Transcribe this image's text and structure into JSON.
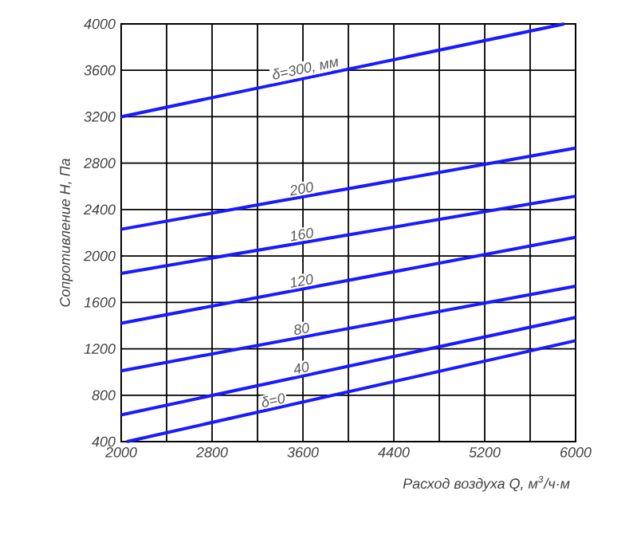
{
  "chart_data": {
    "type": "line",
    "xlabel": "Расход воздуха Q, м$^{3}$/ч·м",
    "ylabel": "Сопротивление Н, Па",
    "xlim": [
      2000,
      6000
    ],
    "ylim": [
      400,
      4000
    ],
    "xticks": [
      2000,
      {
        "value": 2400,
        "label": null
      },
      2800,
      {
        "value": 3200,
        "label": null
      },
      3600,
      {
        "value": 4000,
        "label": null
      },
      4400,
      {
        "value": 4800,
        "label": null
      },
      5200,
      {
        "value": 5600,
        "label": null
      },
      6000
    ],
    "yticks": [
      400,
      800,
      1200,
      1600,
      2000,
      2400,
      2800,
      3200,
      3600,
      4000
    ],
    "grid": true,
    "legend": false,
    "line_style": "solid",
    "marker": "none",
    "series": [
      {
        "name": "δ=300, мм",
        "color": "#1a1aff",
        "x": [
          2000,
          5900
        ],
        "values": [
          3200,
          4000
        ]
      },
      {
        "name": "200",
        "color": "#1a1aff",
        "x": [
          2000,
          6000
        ],
        "values": [
          2230,
          2930
        ]
      },
      {
        "name": "160",
        "color": "#1a1aff",
        "x": [
          2000,
          6000
        ],
        "values": [
          1850,
          2515
        ]
      },
      {
        "name": "120",
        "color": "#1a1aff",
        "x": [
          2000,
          6000
        ],
        "values": [
          1420,
          2160
        ]
      },
      {
        "name": "80",
        "color": "#1a1aff",
        "x": [
          2000,
          6000
        ],
        "values": [
          1010,
          1740
        ]
      },
      {
        "name": "40",
        "color": "#1a1aff",
        "x": [
          2000,
          6000
        ],
        "values": [
          630,
          1470
        ]
      },
      {
        "name": "δ=0",
        "color": "#1a1aff",
        "x": [
          2050,
          6000
        ],
        "values": [
          400,
          1270
        ]
      }
    ]
  }
}
